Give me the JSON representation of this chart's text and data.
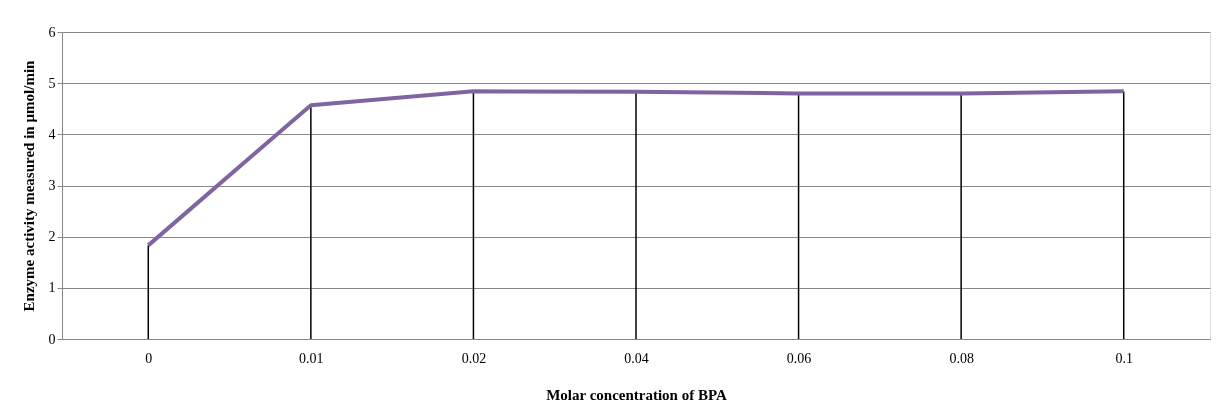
{
  "chart_data": {
    "type": "line",
    "xlabel": "Molar concentration of BPA",
    "ylabel": "Enzyme activity measured in µmol/min",
    "categories": [
      "0",
      "0.01",
      "0.02",
      "0.04",
      "0.06",
      "0.08",
      "0.1"
    ],
    "series": [
      {
        "color": "#8064a2",
        "values": [
          1.83,
          4.57,
          4.84,
          4.83,
          4.8,
          4.8,
          4.84
        ],
        "errors": [
          [
            0,
            1.83
          ],
          [
            0,
            4.57
          ],
          [
            0,
            4.84
          ],
          [
            0,
            4.83
          ],
          [
            0,
            4.8
          ],
          [
            0,
            4.8
          ],
          [
            0,
            4.84
          ]
        ]
      }
    ],
    "ylim": [
      0,
      6
    ],
    "yticks": [
      0,
      1,
      2,
      3,
      4,
      5,
      6
    ],
    "grid": "y",
    "marker": "none",
    "line_style": "solid"
  }
}
